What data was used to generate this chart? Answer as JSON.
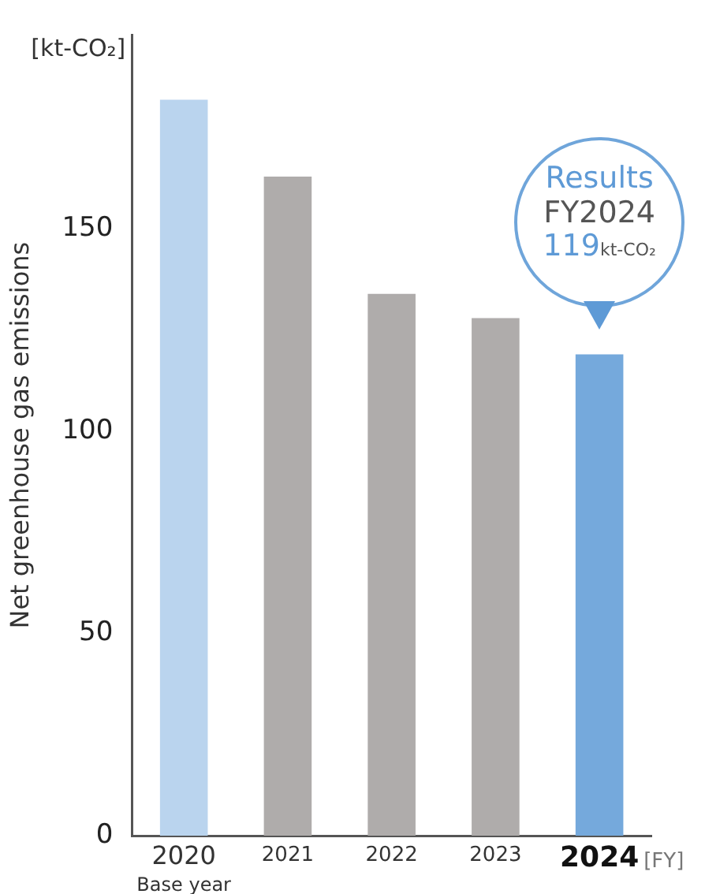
{
  "chart_data": {
    "type": "bar",
    "categories": [
      "2020\nBase year",
      "2021",
      "2022",
      "2023",
      "2024"
    ],
    "values": [
      182,
      163,
      134,
      128,
      119
    ],
    "colors": [
      "#bad4ee",
      "#afacab",
      "#afacab",
      "#afacab",
      "#75a9dc"
    ],
    "ylabel": "Net greenhouse gas emissions",
    "xlabel": "[FY]",
    "ylim": [
      0,
      198
    ],
    "yticks": [
      0,
      50,
      100,
      150
    ],
    "grid": false,
    "legend": false,
    "annotations": [
      "[kt-CO₂]",
      "Results\nFY2024\n119kt-CO₂"
    ]
  }
}
